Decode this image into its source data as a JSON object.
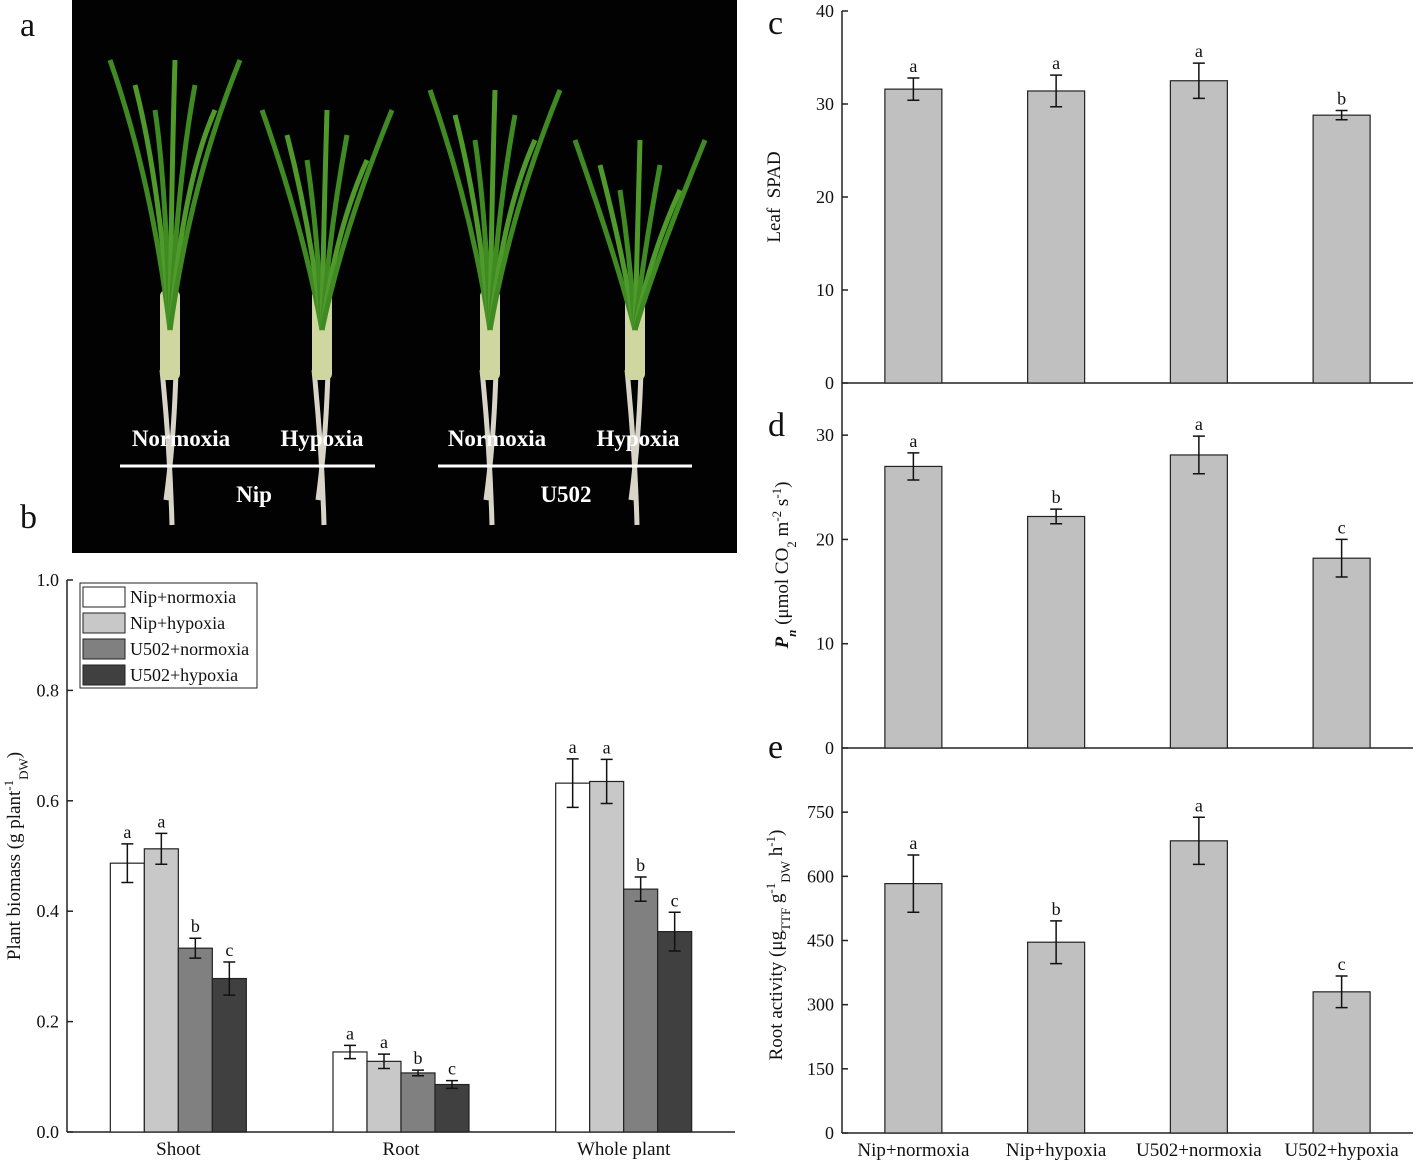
{
  "photo": {
    "panel_label": "a",
    "conditions": [
      "Normoxia",
      "Hypoxia",
      "Normoxia",
      "Hypoxia"
    ],
    "genotypes": [
      "Nip",
      "U502"
    ]
  },
  "chart_data": [
    {
      "type": "bar",
      "panel_label": "b",
      "ylabel": [
        {
          "text": "Plant biomass (g plant"
        },
        {
          "text": "-1",
          "style": "sup"
        },
        {
          "text": "DW",
          "style": "sub"
        },
        {
          "text": ")"
        }
      ],
      "categories": [
        "Shoot",
        "Root",
        "Whole plant"
      ],
      "series": [
        {
          "name": "Nip+normoxia",
          "color": "#ffffff",
          "values": [
            0.487,
            0.145,
            0.632
          ],
          "errors": [
            0.035,
            0.012,
            0.044
          ],
          "letters": [
            "a",
            "a",
            "a"
          ]
        },
        {
          "name": "Nip+hypoxia",
          "color": "#c8c8c8",
          "values": [
            0.513,
            0.128,
            0.635
          ],
          "errors": [
            0.028,
            0.013,
            0.04
          ],
          "letters": [
            "a",
            "a",
            "a"
          ]
        },
        {
          "name": "U502+normoxia",
          "color": "#808080",
          "values": [
            0.333,
            0.107,
            0.44
          ],
          "errors": [
            0.018,
            0.005,
            0.022
          ],
          "letters": [
            "b",
            "b",
            "b"
          ]
        },
        {
          "name": "U502+hypoxia",
          "color": "#404040",
          "values": [
            0.278,
            0.086,
            0.363
          ],
          "errors": [
            0.03,
            0.007,
            0.035
          ],
          "letters": [
            "c",
            "c",
            "c"
          ]
        }
      ],
      "ylim": [
        0,
        1
      ],
      "yticks": [
        {
          "value": 0,
          "label": "0.0"
        },
        0.2,
        0.4,
        0.6,
        0.8,
        {
          "value": 1,
          "label": "1.0"
        }
      ],
      "legend": "upper left"
    },
    {
      "type": "bar",
      "panel_label": "c",
      "ylabel": [
        {
          "text": "Leaf  SPAD"
        }
      ],
      "values": [
        31.6,
        31.4,
        32.5,
        28.8
      ],
      "errors": [
        1.2,
        1.7,
        1.9,
        0.5
      ],
      "letters": [
        "a",
        "a",
        "a",
        "b"
      ],
      "color": "#c0c0c0",
      "ylim": [
        0,
        40
      ],
      "yticks": [
        0,
        10,
        20,
        30,
        40
      ]
    },
    {
      "type": "bar",
      "panel_label": "d",
      "ylabel": [
        {
          "text": "P",
          "style": "italic"
        },
        {
          "text": "n",
          "style": "sub italic"
        },
        {
          "text": " (μmol CO"
        },
        {
          "text": "2",
          "style": "sub"
        },
        {
          "text": " m"
        },
        {
          "text": "-2",
          "style": "sup"
        },
        {
          "text": " s"
        },
        {
          "text": "-1",
          "style": "sup"
        },
        {
          "text": ")"
        }
      ],
      "values": [
        27.0,
        22.2,
        28.1,
        18.2
      ],
      "errors": [
        1.3,
        0.7,
        1.8,
        1.8
      ],
      "letters": [
        "a",
        "b",
        "a",
        "c"
      ],
      "color": "#c0c0c0",
      "ylim": [
        0,
        35
      ],
      "yticks": [
        0,
        10,
        20,
        30
      ]
    },
    {
      "type": "bar",
      "panel_label": "e",
      "ylabel": [
        {
          "text": "Root activity (μg"
        },
        {
          "text": "TTF",
          "style": "sub"
        },
        {
          "text": " g"
        },
        {
          "text": "-1",
          "style": "sup"
        },
        {
          "text": "DW",
          "style": "sub"
        },
        {
          "text": " h"
        },
        {
          "text": "-1",
          "style": "sup"
        },
        {
          "text": ")"
        }
      ],
      "categories": [
        "Nip+normoxia",
        "Nip+hypoxia",
        "U502+normoxia",
        "U502+hypoxia"
      ],
      "values": [
        583,
        446,
        683,
        330
      ],
      "errors": [
        67,
        50,
        55,
        37
      ],
      "letters": [
        "a",
        "b",
        "a",
        "c"
      ],
      "color": "#c0c0c0",
      "ylim": [
        0,
        900
      ],
      "yticks": [
        0,
        150,
        300,
        450,
        600,
        750
      ]
    }
  ]
}
